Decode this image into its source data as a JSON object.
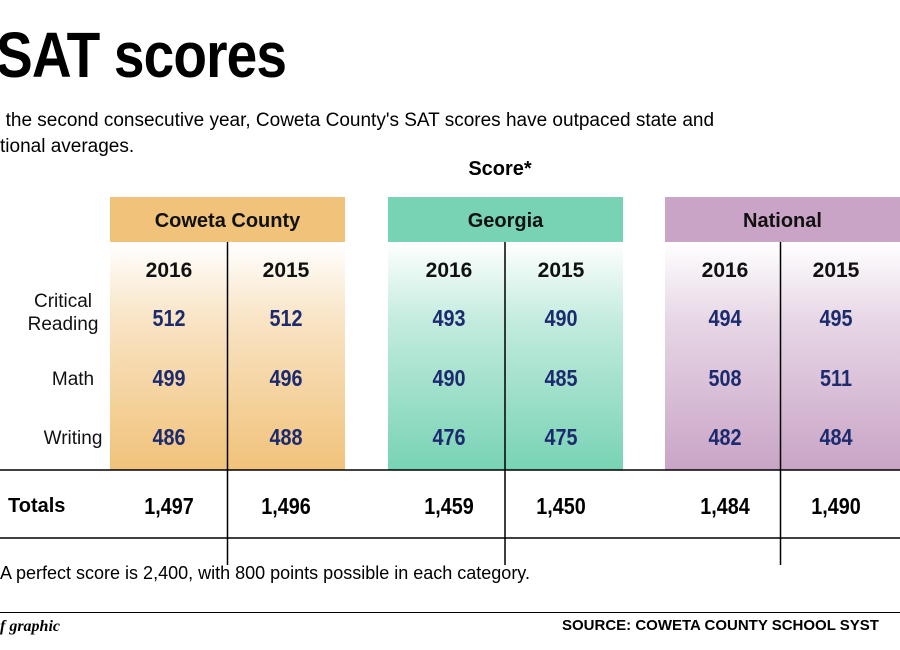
{
  "header": {
    "title": "SAT scores",
    "intro": "r the second consecutive year, Coweta County's SAT scores have outpaced state and\ntional averages."
  },
  "chart_data": {
    "type": "table",
    "group_heading": "Score*",
    "groups": [
      {
        "name": "Coweta County",
        "color": "#f1c27a"
      },
      {
        "name": "Georgia",
        "color": "#78d3b5"
      },
      {
        "name": "National",
        "color": "#c9a4c6"
      }
    ],
    "years": [
      "2016",
      "2015"
    ],
    "rows": [
      {
        "label": "Critical Reading",
        "values": [
          "512",
          "512",
          "493",
          "490",
          "494",
          "495"
        ]
      },
      {
        "label": "Math",
        "values": [
          "499",
          "496",
          "490",
          "485",
          "508",
          "511"
        ]
      },
      {
        "label": "Writing",
        "values": [
          "486",
          "488",
          "476",
          "475",
          "482",
          "484"
        ]
      }
    ],
    "totals": {
      "label": "Totals",
      "values": [
        "1,497",
        "1,496",
        "1,459",
        "1,450",
        "1,484",
        "1,490"
      ]
    },
    "value_color": "#1c2a6e"
  },
  "footer": {
    "note": "A perfect score is 2,400, with 800 points possible in each category.",
    "credit": "f graphic",
    "source": "SOURCE: COWETA COUNTY SCHOOL SYST"
  }
}
